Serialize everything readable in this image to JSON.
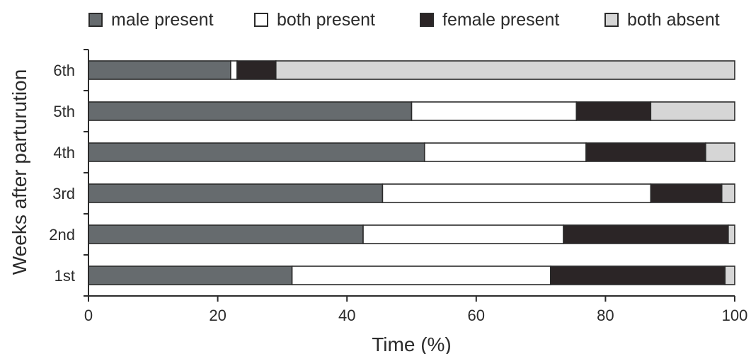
{
  "legend": {
    "items": [
      {
        "label": "male present",
        "color": "#666b6e"
      },
      {
        "label": "both present",
        "color": "#ffffff"
      },
      {
        "label": "female present",
        "color": "#2b2526"
      },
      {
        "label": "both absent",
        "color": "#d6d6d6"
      }
    ]
  },
  "chart_data": {
    "type": "bar",
    "orientation": "horizontal",
    "stacked": true,
    "title": "",
    "xlabel": "Time (%)",
    "ylabel": "Weeks after parturution",
    "xlim": [
      0,
      100
    ],
    "xticks": [
      0,
      20,
      40,
      60,
      80,
      100
    ],
    "categories": [
      "6th",
      "5th",
      "4th",
      "3rd",
      "2nd",
      "1st"
    ],
    "series": [
      {
        "name": "male present",
        "values": [
          22,
          50,
          52,
          45.5,
          42.5,
          31.5
        ],
        "color": "#666b6e"
      },
      {
        "name": "both present",
        "values": [
          1,
          25.5,
          25,
          41.5,
          31,
          40
        ],
        "color": "#ffffff"
      },
      {
        "name": "female present",
        "values": [
          6,
          11.5,
          18.5,
          11,
          25.5,
          27
        ],
        "color": "#2b2526"
      },
      {
        "name": "both absent",
        "values": [
          71,
          13,
          4.5,
          2,
          1,
          1.5
        ],
        "color": "#d6d6d6"
      }
    ],
    "legend_position": "top",
    "grid": false
  }
}
